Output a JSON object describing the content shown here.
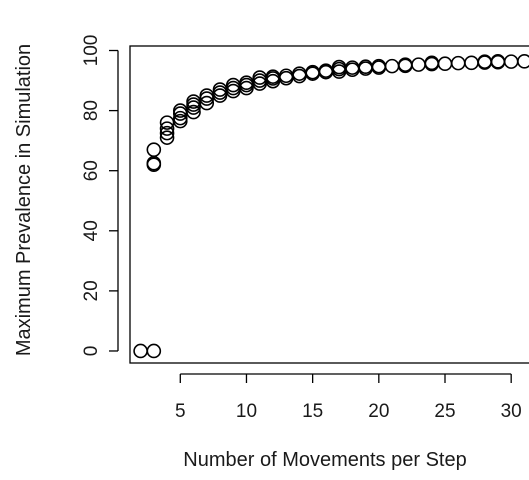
{
  "chart_data": {
    "type": "scatter",
    "title": "",
    "xlabel": "Number of Movements per Step",
    "ylabel": "Maximum Prevalence in Simulation",
    "xlim": [
      1.2,
      31.8
    ],
    "ylim": [
      -4,
      101.5
    ],
    "x_ticks": [
      5,
      10,
      15,
      20,
      25,
      30
    ],
    "y_ticks": [
      0,
      20,
      40,
      60,
      80,
      100
    ],
    "grid": false,
    "legend": "none",
    "point_color": "#000000",
    "points": [
      {
        "x": 2,
        "y": 0
      },
      {
        "x": 3,
        "y": 0
      },
      {
        "x": 3,
        "y": 62
      },
      {
        "x": 3,
        "y": 62.5
      },
      {
        "x": 3,
        "y": 67
      },
      {
        "x": 4,
        "y": 71
      },
      {
        "x": 4,
        "y": 72.5
      },
      {
        "x": 4,
        "y": 74
      },
      {
        "x": 4,
        "y": 76
      },
      {
        "x": 5,
        "y": 76.5
      },
      {
        "x": 5,
        "y": 77.5
      },
      {
        "x": 5,
        "y": 79
      },
      {
        "x": 5,
        "y": 80
      },
      {
        "x": 6,
        "y": 79.5
      },
      {
        "x": 6,
        "y": 81
      },
      {
        "x": 6,
        "y": 82
      },
      {
        "x": 6,
        "y": 83
      },
      {
        "x": 7,
        "y": 82.5
      },
      {
        "x": 7,
        "y": 84
      },
      {
        "x": 7,
        "y": 85
      },
      {
        "x": 8,
        "y": 85
      },
      {
        "x": 8,
        "y": 86
      },
      {
        "x": 8,
        "y": 87
      },
      {
        "x": 9,
        "y": 86.5
      },
      {
        "x": 9,
        "y": 87.5
      },
      {
        "x": 9,
        "y": 88.5
      },
      {
        "x": 10,
        "y": 87.5
      },
      {
        "x": 10,
        "y": 88.5
      },
      {
        "x": 10,
        "y": 89.3
      },
      {
        "x": 11,
        "y": 89
      },
      {
        "x": 11,
        "y": 90
      },
      {
        "x": 11,
        "y": 91
      },
      {
        "x": 12,
        "y": 89.8
      },
      {
        "x": 12,
        "y": 90.7
      },
      {
        "x": 12,
        "y": 91.3
      },
      {
        "x": 13,
        "y": 90.8
      },
      {
        "x": 13,
        "y": 91.6
      },
      {
        "x": 14,
        "y": 91.5
      },
      {
        "x": 14,
        "y": 92.3
      },
      {
        "x": 15,
        "y": 92.3
      },
      {
        "x": 15,
        "y": 92.8
      },
      {
        "x": 16,
        "y": 92.8
      },
      {
        "x": 16,
        "y": 93.3
      },
      {
        "x": 17,
        "y": 93
      },
      {
        "x": 17,
        "y": 93.8
      },
      {
        "x": 17,
        "y": 94.5
      },
      {
        "x": 18,
        "y": 93.6
      },
      {
        "x": 18,
        "y": 94.3
      },
      {
        "x": 19,
        "y": 94
      },
      {
        "x": 19,
        "y": 94.6
      },
      {
        "x": 20,
        "y": 94.3
      },
      {
        "x": 20,
        "y": 94.8
      },
      {
        "x": 21,
        "y": 94.8
      },
      {
        "x": 22,
        "y": 94.9
      },
      {
        "x": 22,
        "y": 95.3
      },
      {
        "x": 23,
        "y": 95.3
      },
      {
        "x": 24,
        "y": 95.5
      },
      {
        "x": 24,
        "y": 95.9
      },
      {
        "x": 25,
        "y": 95.6
      },
      {
        "x": 26,
        "y": 95.8
      },
      {
        "x": 27,
        "y": 95.9
      },
      {
        "x": 28,
        "y": 96
      },
      {
        "x": 28,
        "y": 96.3
      },
      {
        "x": 29,
        "y": 96.1
      },
      {
        "x": 29,
        "y": 96.4
      },
      {
        "x": 30,
        "y": 96.3
      },
      {
        "x": 31,
        "y": 96.4
      }
    ]
  }
}
